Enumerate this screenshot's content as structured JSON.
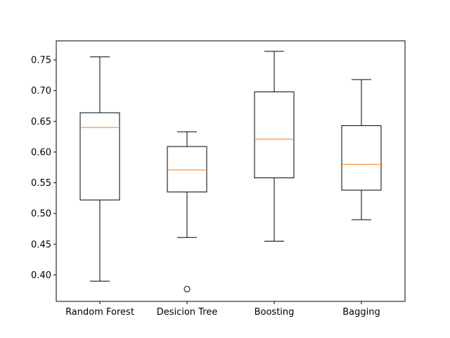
{
  "chart_data": {
    "type": "boxplot",
    "categories": [
      "Random Forest",
      "Desicion Tree",
      "Boosting",
      "Bagging"
    ],
    "boxes": [
      {
        "whisker_low": 0.39,
        "q1": 0.522,
        "median": 0.64,
        "q3": 0.664,
        "whisker_high": 0.755,
        "outliers": []
      },
      {
        "whisker_low": 0.461,
        "q1": 0.535,
        "median": 0.571,
        "q3": 0.609,
        "whisker_high": 0.633,
        "outliers": [
          0.377
        ]
      },
      {
        "whisker_low": 0.455,
        "q1": 0.558,
        "median": 0.621,
        "q3": 0.698,
        "whisker_high": 0.764,
        "outliers": []
      },
      {
        "whisker_low": 0.49,
        "q1": 0.538,
        "median": 0.58,
        "q3": 0.643,
        "whisker_high": 0.718,
        "outliers": []
      }
    ],
    "y_ticks": [
      "0.40",
      "0.45",
      "0.50",
      "0.55",
      "0.60",
      "0.65",
      "0.70",
      "0.75"
    ],
    "ylim": [
      0.357,
      0.781
    ],
    "title": "",
    "xlabel": "",
    "ylabel": "",
    "grid": false,
    "colors": {
      "box": "#000000",
      "median": "#ff7f0e"
    }
  }
}
